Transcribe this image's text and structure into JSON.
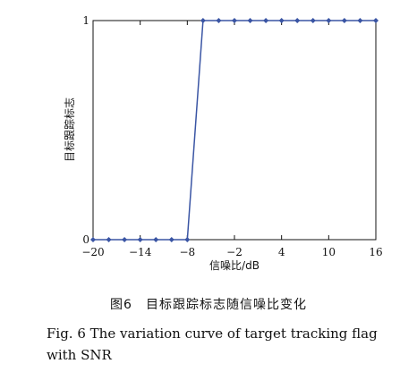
{
  "chart_data": {
    "type": "line",
    "xlabel": "信噪比/dB",
    "ylabel": "目标跟踪标志",
    "xlim": [
      -20,
      16
    ],
    "ylim": [
      0,
      1
    ],
    "xticks": [
      -20,
      -14,
      -8,
      -2,
      4,
      10,
      16
    ],
    "xtick_labels": [
      "−20",
      "−14",
      "−8",
      "−2",
      "4",
      "10",
      "16"
    ],
    "yticks": [
      0,
      1
    ],
    "ytick_labels": [
      "0",
      "1"
    ],
    "grid": false,
    "color": "#3a55a4",
    "series": [
      {
        "x": [
          -20,
          -18,
          -16,
          -14,
          -12,
          -10,
          -8,
          -6,
          -4,
          -2,
          0,
          2,
          4,
          6,
          8,
          10,
          12,
          14,
          16
        ],
        "y": [
          0,
          0,
          0,
          0,
          0,
          0,
          0,
          1,
          1,
          1,
          1,
          1,
          1,
          1,
          1,
          1,
          1,
          1,
          1
        ]
      }
    ]
  },
  "caption": {
    "cn": "图6　目标跟踪标志随信噪比变化",
    "en": "Fig. 6  The variation curve of target tracking flag with SNR"
  }
}
